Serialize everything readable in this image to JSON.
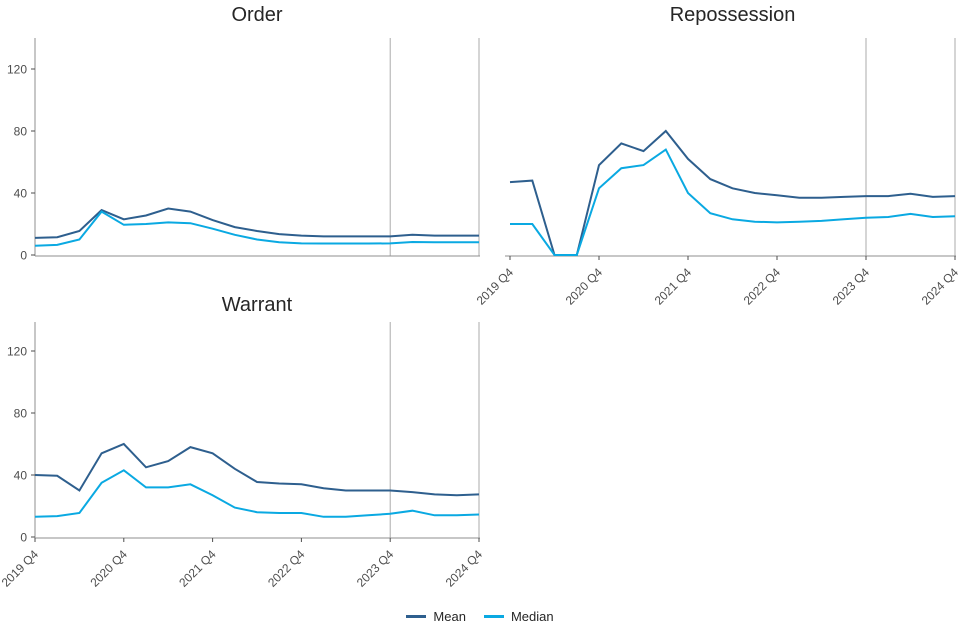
{
  "colors": {
    "mean_line": "#2e5f8e",
    "median_line": "#0aa9e2",
    "reference_line": "#ababab",
    "axis_line": "#8f8f8f",
    "tick_mark": "#4d4d4d",
    "tick_label": "#4d4d4d",
    "title_text": "#262626"
  },
  "legend": {
    "position": "bottom-center",
    "items": [
      {
        "label": "Mean",
        "color": "#2e5f8e"
      },
      {
        "label": "Median",
        "color": "#0aa9e2"
      }
    ]
  },
  "chart_data": [
    {
      "type": "line",
      "title": "Order",
      "x": [
        "2019 Q4",
        "2020 Q1",
        "2020 Q2",
        "2020 Q3",
        "2020 Q4",
        "2021 Q1",
        "2021 Q2",
        "2021 Q3",
        "2021 Q4",
        "2022 Q1",
        "2022 Q2",
        "2022 Q3",
        "2022 Q4",
        "2023 Q1",
        "2023 Q2",
        "2023 Q3",
        "2023 Q4",
        "2024 Q1",
        "2024 Q2",
        "2024 Q3",
        "2024 Q4"
      ],
      "x_axis_tick_labels": [
        "2019 Q4",
        "2020 Q4",
        "2021 Q4",
        "2022 Q4",
        "2023 Q4",
        "2024 Q4"
      ],
      "show_x_axis_labels": false,
      "show_y_axis_labels": true,
      "yticks": [
        0,
        40,
        80,
        120
      ],
      "ylim": [
        0,
        140
      ],
      "grid": false,
      "reference_lines_x": [
        "2023 Q4",
        "2024 Q4"
      ],
      "series": [
        {
          "name": "Mean",
          "values": [
            11,
            11.5,
            15.5,
            29,
            23,
            25.5,
            30,
            28,
            22.5,
            18,
            15.5,
            13.5,
            12.5,
            12,
            12,
            12,
            12,
            13,
            12.5,
            12.5,
            12.5
          ]
        },
        {
          "name": "Median",
          "values": [
            6,
            6.5,
            10,
            28,
            19.5,
            20,
            21,
            20.5,
            17,
            13,
            10,
            8.2,
            7.5,
            7.4,
            7.4,
            7.4,
            7.5,
            8.4,
            8.2,
            8.2,
            8.2
          ]
        }
      ]
    },
    {
      "type": "line",
      "title": "Repossession",
      "x": [
        "2019 Q4",
        "2020 Q1",
        "2020 Q2",
        "2020 Q3",
        "2020 Q4",
        "2021 Q1",
        "2021 Q2",
        "2021 Q3",
        "2021 Q4",
        "2022 Q1",
        "2022 Q2",
        "2022 Q3",
        "2022 Q4",
        "2023 Q1",
        "2023 Q2",
        "2023 Q3",
        "2023 Q4",
        "2024 Q1",
        "2024 Q2",
        "2024 Q3",
        "2024 Q4"
      ],
      "x_axis_tick_labels": [
        "2019 Q4",
        "2020 Q4",
        "2021 Q4",
        "2022 Q4",
        "2023 Q4",
        "2024 Q4"
      ],
      "show_x_axis_labels": true,
      "show_y_axis_labels": false,
      "yticks": [
        0,
        40,
        80,
        120
      ],
      "ylim": [
        0,
        140
      ],
      "grid": false,
      "reference_lines_x": [
        "2023 Q4",
        "2024 Q4"
      ],
      "series": [
        {
          "name": "Mean",
          "values": [
            47,
            48,
            0,
            0,
            58,
            72,
            67,
            80,
            62,
            49,
            43,
            40,
            38.5,
            37,
            37,
            37.5,
            38,
            38,
            39.5,
            37.5,
            38
          ]
        },
        {
          "name": "Median",
          "values": [
            20,
            20,
            0,
            0,
            43,
            56,
            58,
            68,
            40,
            27,
            23,
            21.5,
            21,
            21.5,
            22,
            23,
            24,
            24.5,
            26.5,
            24.5,
            25
          ]
        }
      ]
    },
    {
      "type": "line",
      "title": "Warrant",
      "x": [
        "2019 Q4",
        "2020 Q1",
        "2020 Q2",
        "2020 Q3",
        "2020 Q4",
        "2021 Q1",
        "2021 Q2",
        "2021 Q3",
        "2021 Q4",
        "2022 Q1",
        "2022 Q2",
        "2022 Q3",
        "2022 Q4",
        "2023 Q1",
        "2023 Q2",
        "2023 Q3",
        "2023 Q4",
        "2024 Q1",
        "2024 Q2",
        "2024 Q3",
        "2024 Q4"
      ],
      "x_axis_tick_labels": [
        "2019 Q4",
        "2020 Q4",
        "2021 Q4",
        "2022 Q4",
        "2023 Q4",
        "2024 Q4"
      ],
      "show_x_axis_labels": true,
      "show_y_axis_labels": true,
      "yticks": [
        0,
        40,
        80,
        120
      ],
      "ylim": [
        0,
        140
      ],
      "grid": false,
      "reference_lines_x": [
        "2023 Q4",
        "2024 Q4"
      ],
      "series": [
        {
          "name": "Mean",
          "values": [
            40,
            39.5,
            30,
            54,
            60,
            45,
            49,
            58,
            54,
            44,
            35.5,
            34.5,
            34,
            31.5,
            30,
            30,
            30,
            29,
            27.5,
            27,
            27.5
          ]
        },
        {
          "name": "Median",
          "values": [
            13,
            13.5,
            15.5,
            35,
            43,
            32,
            32,
            34,
            27,
            19,
            16,
            15.5,
            15.5,
            13,
            13,
            14,
            15,
            17,
            14,
            14,
            14.5
          ]
        }
      ]
    }
  ]
}
